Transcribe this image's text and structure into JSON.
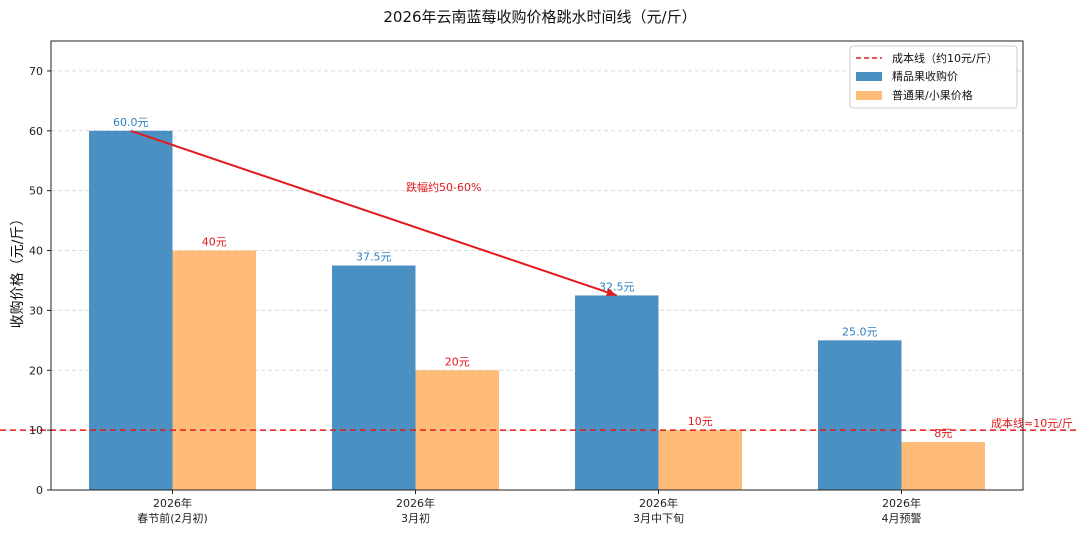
{
  "chart_data": {
    "type": "bar",
    "title": "2026年云南蓝莓收购价格跳水时间线（元/斤）",
    "ylabel": "收购价格（元/斤）",
    "xlabel": "",
    "ylim": [
      0,
      75
    ],
    "yticks": [
      0,
      10,
      20,
      30,
      40,
      50,
      60,
      70
    ],
    "grid": true,
    "legend_position": "top-right",
    "categories": [
      [
        "2026年",
        "春节前(2月初)"
      ],
      [
        "2026年",
        "3月初"
      ],
      [
        "2026年",
        "3月中下旬"
      ],
      [
        "2026年",
        "4月预警"
      ]
    ],
    "series": [
      {
        "name": "精品果收购价",
        "color": "#4a90c2",
        "values": [
          60.0,
          37.5,
          32.5,
          25.0
        ],
        "labels": [
          "60.0元",
          "37.5元",
          "32.5元",
          "25.0元"
        ],
        "label_color": "#2f7fbf"
      },
      {
        "name": "普通果/小果价格",
        "color": "#ffbb78",
        "values": [
          40,
          20,
          10,
          8
        ],
        "labels": [
          "40元",
          "20元",
          "10元",
          "8元"
        ],
        "label_color": "#e31a1c"
      }
    ],
    "reference_line": {
      "name": "成本线（约10元/斤）",
      "value": 10,
      "color": "#e31a1c",
      "label": "成本线≈10元/斤"
    },
    "annotation": {
      "text": "跌幅约50-60%",
      "from": {
        "category_index": 0,
        "series_index": 0
      },
      "to": {
        "category_index": 2,
        "series_index": 0
      },
      "color": "#e31a1c"
    }
  }
}
